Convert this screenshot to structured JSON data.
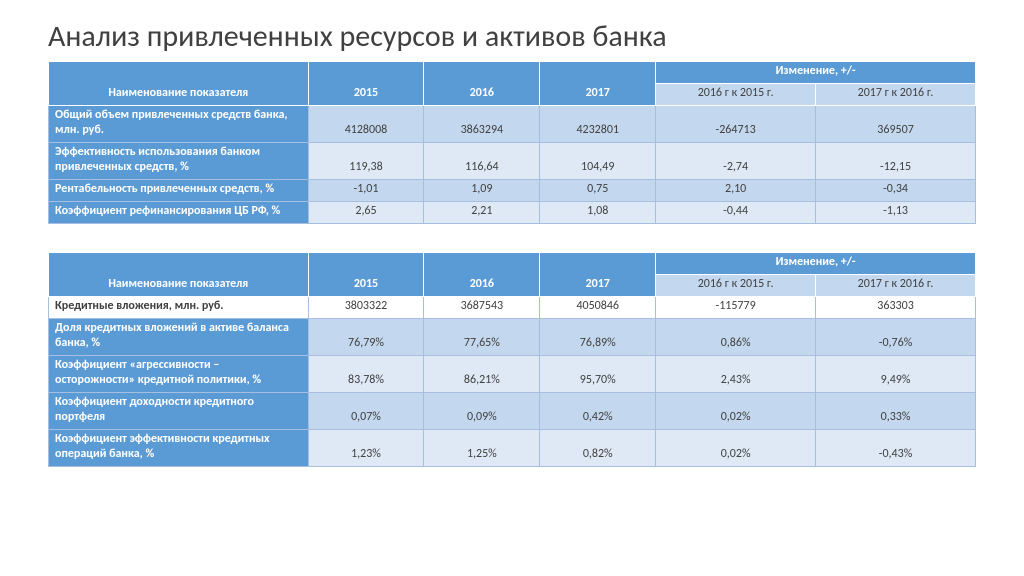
{
  "title": "Анализ привлеченных ресурсов и активов банка",
  "title_fontsize": 30,
  "title_color": "#404040",
  "colors": {
    "header_bg": "#5b9bd5",
    "header_fg": "#ffffff",
    "band_a": "#c3d8ee",
    "band_b": "#dfe9f5",
    "grid": "#a6bfe0",
    "text": "#404040"
  },
  "table1": {
    "header": {
      "indicator": "Наименование показателя",
      "y2015": "2015",
      "y2016": "2016",
      "y2017": "2017",
      "delta_group": "Изменение, +/-",
      "d1": "2016 г к 2015 г.",
      "d2": "2017 г к 2016 г."
    },
    "rows": [
      {
        "label": "Общий объем привлеченных средств банка, млн. руб.",
        "v2015": "4128008",
        "v2016": "3863294",
        "v2017": "4232801",
        "d1": "-264713",
        "d2": "369507"
      },
      {
        "label": "Эффективность использования банком привлеченных средств, %",
        "v2015": "119,38",
        "v2016": "116,64",
        "v2017": "104,49",
        "d1": "-2,74",
        "d2": "-12,15"
      },
      {
        "label": "Рентабельность привлеченных средств, %",
        "v2015": "-1,01",
        "v2016": "1,09",
        "v2017": "0,75",
        "d1": "2,10",
        "d2": "-0,34"
      },
      {
        "label": "Коэффициент рефинансирования ЦБ РФ, %",
        "v2015": "2,65",
        "v2016": "2,21",
        "v2017": "1,08",
        "d1": "-0,44",
        "d2": "-1,13"
      }
    ]
  },
  "table2": {
    "header": {
      "indicator": "Наименование показателя",
      "y2015": "2015",
      "y2016": "2016",
      "y2017": "2017",
      "delta_group": "Изменение, +/-",
      "d1": "2016 г к 2015 г.",
      "d2": "2017 г к 2016 г."
    },
    "rows_plain": [
      {
        "label": "Кредитные вложения, млн. руб.",
        "v2015": "3803322",
        "v2016": "3687543",
        "v2017": "4050846",
        "d1": "-115779",
        "d2": "363303"
      }
    ],
    "rows": [
      {
        "label": "Доля кредитных вложений в активе баланса банка, %",
        "v2015": "76,79%",
        "v2016": "77,65%",
        "v2017": "76,89%",
        "d1": "0,86%",
        "d2": "-0,76%"
      },
      {
        "label": "Коэффициент «агрессивности – осторожности» кредитной политики, %",
        "v2015": "83,78%",
        "v2016": "86,21%",
        "v2017": "95,70%",
        "d1": "2,43%",
        "d2": "9,49%"
      },
      {
        "label": "Коэффициент доходности кредитного портфеля",
        "v2015": "0,07%",
        "v2016": "0,09%",
        "v2017": "0,42%",
        "d1": "0,02%",
        "d2": "0,33%"
      },
      {
        "label": "Коэффициент эффективности кредитных операций банка, %",
        "v2015": "1,23%",
        "v2016": "1,25%",
        "v2017": "0,82%",
        "d1": "0,02%",
        "d2": "-0,43%"
      }
    ]
  }
}
